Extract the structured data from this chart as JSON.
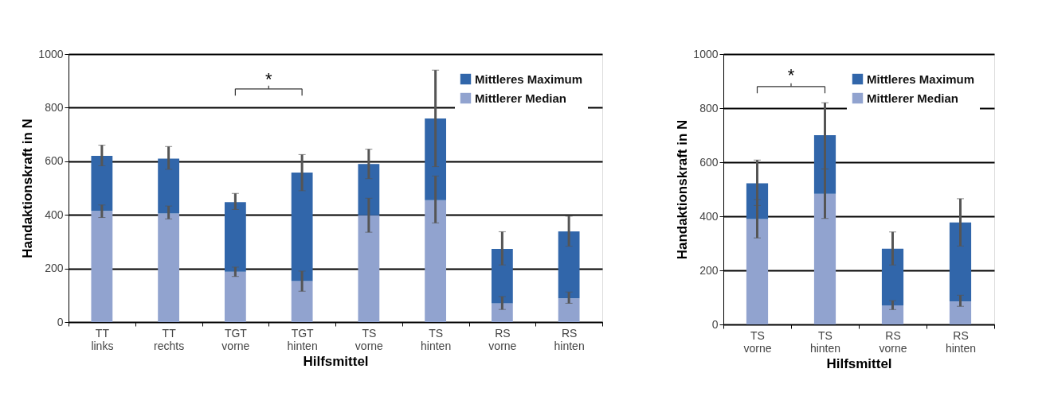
{
  "chart_data": [
    {
      "type": "bar",
      "stacked": true,
      "xlabel": "Hilfsmittel",
      "ylabel": "Handaktionskraft in N",
      "categories": [
        "TT links",
        "TT rechts",
        "TGT vorne",
        "TGT hinten",
        "TS vorne",
        "TS hinten",
        "RS vorne",
        "RS hinten"
      ],
      "series": [
        {
          "name": "Mittlerer Median",
          "color": "#91a3cf",
          "values": [
            415,
            405,
            188,
            153,
            398,
            455,
            70,
            88
          ],
          "errors": [
            [
              390,
              437
            ],
            [
              385,
              433
            ],
            [
              170,
              205
            ],
            [
              115,
              190
            ],
            [
              335,
              462
            ],
            [
              370,
              545
            ],
            [
              47,
              95
            ],
            [
              70,
              112
            ]
          ]
        },
        {
          "name": "Mittleres Maximum",
          "color": "#3166aa",
          "values": [
            205,
            205,
            259,
            405,
            192,
            305,
            203,
            250
          ],
          "errors": [
            [
              583,
              660
            ],
            [
              570,
              655
            ],
            [
              420,
              480
            ],
            [
              490,
              625
            ],
            [
              535,
              645
            ],
            [
              580,
              940
            ],
            [
              213,
              337
            ],
            [
              283,
              395
            ]
          ]
        }
      ],
      "ylim": [
        0,
        1000
      ],
      "yticks": [
        0,
        200,
        400,
        600,
        800,
        1000
      ],
      "grid": "y",
      "legend": "top right",
      "annotations": [
        "*"
      ]
    },
    {
      "type": "bar",
      "stacked": true,
      "xlabel": "Hilfsmittel",
      "ylabel": "Handaktionskraft in N",
      "categories": [
        "TS vorne",
        "TS hinten",
        "RS vorne",
        "RS hinten"
      ],
      "series": [
        {
          "name": "Mittlerer Median",
          "color": "#91a3cf",
          "values": [
            390,
            483,
            70,
            85
          ],
          "errors": [
            [
              320,
              462
            ],
            [
              392,
              575
            ],
            [
              55,
              88
            ],
            [
              67,
              108
            ]
          ]
        },
        {
          "name": "Mittleres Maximum",
          "color": "#3166aa",
          "values": [
            132,
            217,
            210,
            292
          ],
          "errors": [
            [
              440,
              608
            ],
            [
              575,
              820
            ],
            [
              220,
              342
            ],
            [
              290,
              465
            ]
          ]
        }
      ],
      "ylim": [
        0,
        1000
      ],
      "yticks": [
        0,
        200,
        400,
        600,
        800,
        1000
      ],
      "grid": "y",
      "legend": "top right",
      "annotations": [
        "*"
      ]
    }
  ]
}
